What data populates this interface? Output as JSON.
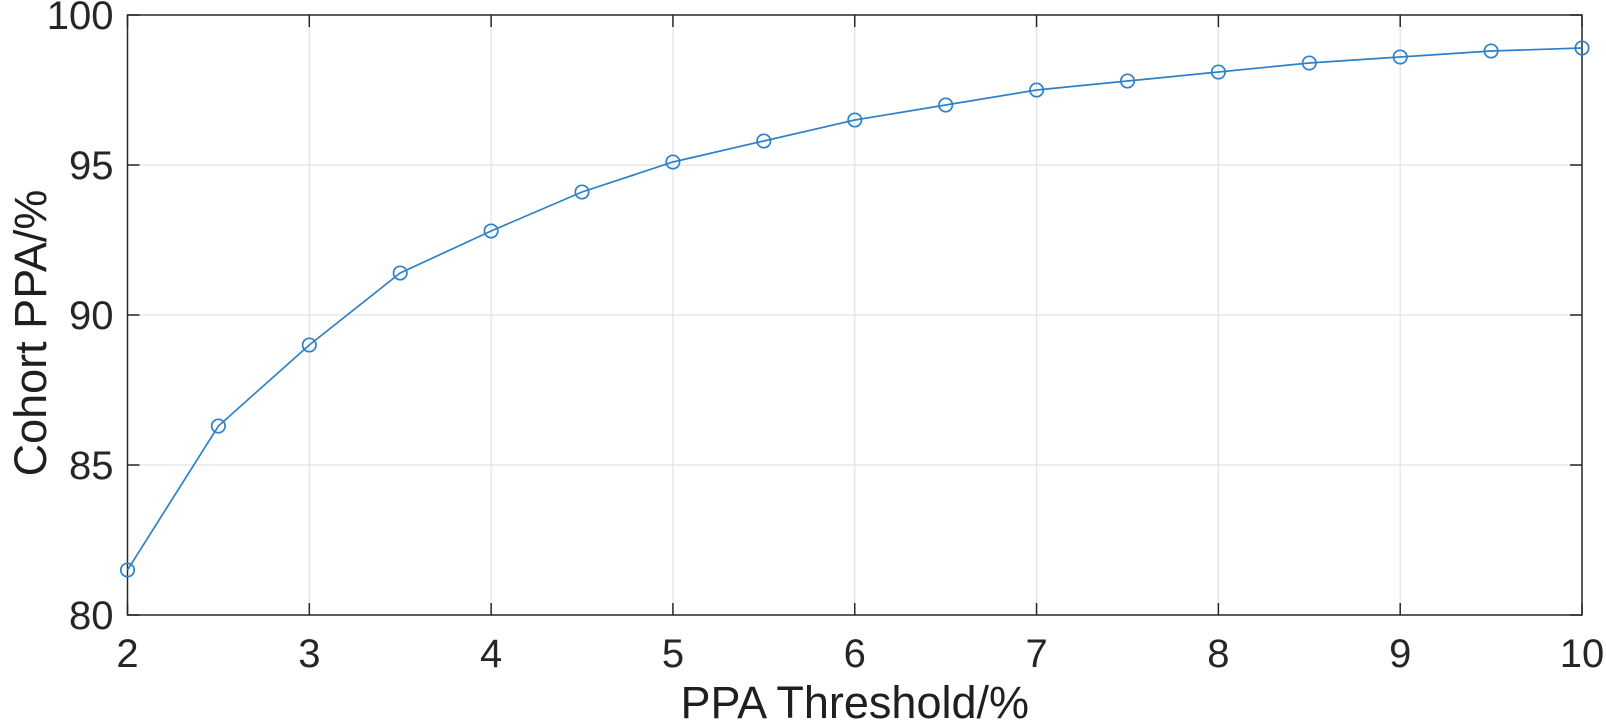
{
  "figure": {
    "background": "#ffffff"
  },
  "chart_data": {
    "type": "line",
    "title": "",
    "xlabel": "PPA Threshold/%",
    "ylabel": "Cohort PPA/%",
    "x": [
      2,
      2.5,
      3,
      3.5,
      4,
      4.5,
      5,
      5.5,
      6,
      6.5,
      7,
      7.5,
      8,
      8.5,
      9,
      9.5,
      10
    ],
    "y": [
      81.5,
      86.3,
      89.0,
      91.4,
      92.8,
      94.1,
      95.1,
      95.8,
      96.5,
      97.0,
      97.5,
      97.8,
      98.1,
      98.4,
      98.6,
      98.8,
      98.9
    ],
    "xlim": [
      2,
      10
    ],
    "ylim": [
      80,
      100
    ],
    "xticks": [
      2,
      3,
      4,
      5,
      6,
      7,
      8,
      9,
      10
    ],
    "yticks": [
      80,
      85,
      90,
      95,
      100
    ],
    "grid": true,
    "legend": "none",
    "marker": "open-circle",
    "colors": {
      "line": "#2e81c8",
      "grid": "#e2e2e2",
      "axis": "#262626",
      "tick_text": "#262626",
      "label_text": "#1f1f1f",
      "background": "#ffffff"
    }
  }
}
